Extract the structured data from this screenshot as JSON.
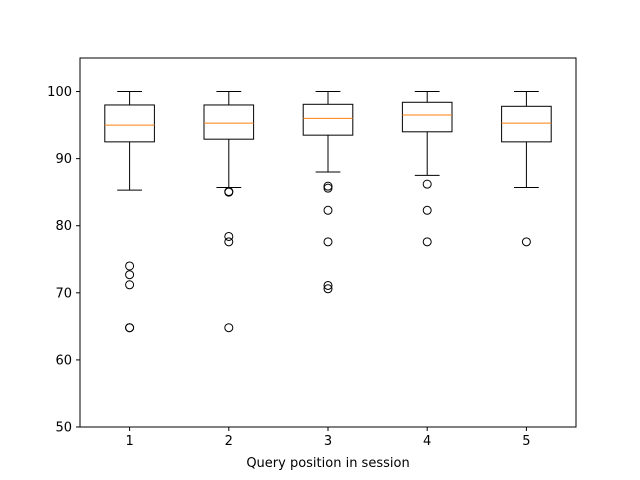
{
  "chart_data": {
    "type": "box",
    "title": "",
    "xlabel": "Query position in session",
    "ylabel": "",
    "categories": [
      "1",
      "2",
      "3",
      "4",
      "5"
    ],
    "ylim": [
      50,
      105
    ],
    "yticks": [
      50,
      60,
      70,
      80,
      90,
      100
    ],
    "grid": false,
    "colors": {
      "box": "#000000",
      "median": "#ff7f0e",
      "flier": "#000000"
    },
    "boxes": [
      {
        "label": "1",
        "whisker_low": 85.3,
        "q1": 92.5,
        "median": 95.0,
        "q3": 98.0,
        "whisker_high": 100.0,
        "fliers": [
          74.0,
          72.7,
          71.2,
          64.8,
          64.8
        ]
      },
      {
        "label": "2",
        "whisker_low": 85.7,
        "q1": 92.9,
        "median": 95.3,
        "q3": 98.0,
        "whisker_high": 100.0,
        "fliers": [
          85.1,
          85.0,
          78.4,
          77.6,
          64.8
        ]
      },
      {
        "label": "3",
        "whisker_low": 88.0,
        "q1": 93.5,
        "median": 96.0,
        "q3": 98.1,
        "whisker_high": 100.0,
        "fliers": [
          85.9,
          85.6,
          82.3,
          77.6,
          71.1,
          70.6
        ]
      },
      {
        "label": "4",
        "whisker_low": 87.5,
        "q1": 94.0,
        "median": 96.5,
        "q3": 98.4,
        "whisker_high": 100.0,
        "fliers": [
          86.2,
          82.3,
          77.6
        ]
      },
      {
        "label": "5",
        "whisker_low": 85.7,
        "q1": 92.5,
        "median": 95.3,
        "q3": 97.8,
        "whisker_high": 100.0,
        "fliers": [
          77.6
        ]
      }
    ]
  }
}
